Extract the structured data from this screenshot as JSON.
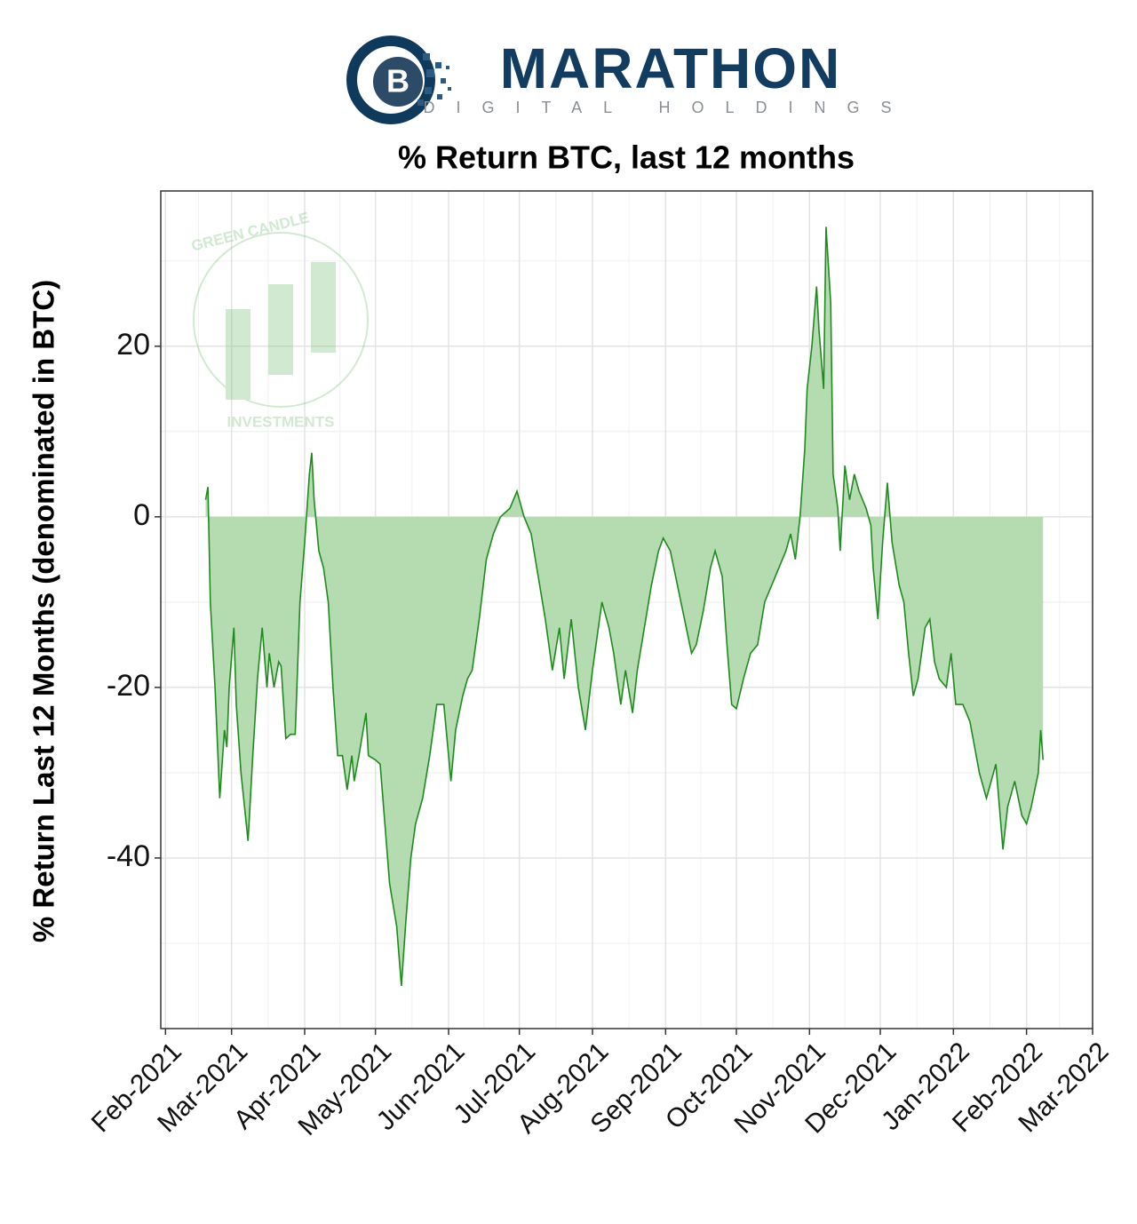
{
  "logo": {
    "name": "MARATHON",
    "tagline": "DIGITAL HOLDINGS"
  },
  "watermark": {
    "top": "GREEN CANDLE",
    "bottom": "INVESTMENTS"
  },
  "chart_data": {
    "type": "area",
    "title": "% Return BTC, last 12 months",
    "y_label": "% Return Last 12 Months (denominated in BTC)",
    "x": [
      "2021-02-18",
      "2021-02-19",
      "2021-02-20",
      "2021-02-22",
      "2021-02-24",
      "2021-02-26",
      "2021-02-27",
      "2021-02-28",
      "2021-03-02",
      "2021-03-03",
      "2021-03-05",
      "2021-03-08",
      "2021-03-10",
      "2021-03-12",
      "2021-03-14",
      "2021-03-16",
      "2021-03-17",
      "2021-03-19",
      "2021-03-21",
      "2021-03-22",
      "2021-03-24",
      "2021-03-26",
      "2021-03-28",
      "2021-03-30",
      "2021-04-01",
      "2021-04-03",
      "2021-04-04",
      "2021-04-05",
      "2021-04-07",
      "2021-04-09",
      "2021-04-11",
      "2021-04-13",
      "2021-04-15",
      "2021-04-17",
      "2021-04-19",
      "2021-04-21",
      "2021-04-22",
      "2021-04-24",
      "2021-04-27",
      "2021-04-28",
      "2021-05-01",
      "2021-05-03",
      "2021-05-05",
      "2021-05-07",
      "2021-05-10",
      "2021-05-12",
      "2021-05-14",
      "2021-05-16",
      "2021-05-18",
      "2021-05-21",
      "2021-05-24",
      "2021-05-27",
      "2021-05-30",
      "2021-06-02",
      "2021-06-04",
      "2021-06-07",
      "2021-06-09",
      "2021-06-11",
      "2021-06-14",
      "2021-06-17",
      "2021-06-20",
      "2021-06-23",
      "2021-06-27",
      "2021-06-30",
      "2021-07-03",
      "2021-07-06",
      "2021-07-09",
      "2021-07-12",
      "2021-07-15",
      "2021-07-18",
      "2021-07-20",
      "2021-07-23",
      "2021-07-26",
      "2021-07-29",
      "2021-08-01",
      "2021-08-03",
      "2021-08-05",
      "2021-08-08",
      "2021-08-10",
      "2021-08-13",
      "2021-08-15",
      "2021-08-18",
      "2021-08-20",
      "2021-08-23",
      "2021-08-26",
      "2021-08-29",
      "2021-08-31",
      "2021-09-03",
      "2021-09-06",
      "2021-09-09",
      "2021-09-12",
      "2021-09-14",
      "2021-09-17",
      "2021-09-20",
      "2021-09-22",
      "2021-09-25",
      "2021-09-27",
      "2021-09-29",
      "2021-10-01",
      "2021-10-04",
      "2021-10-07",
      "2021-10-10",
      "2021-10-13",
      "2021-10-16",
      "2021-10-19",
      "2021-10-22",
      "2021-10-24",
      "2021-10-26",
      "2021-10-28",
      "2021-10-30",
      "2021-10-31",
      "2021-11-02",
      "2021-11-04",
      "2021-11-05",
      "2021-11-07",
      "2021-11-08",
      "2021-11-10",
      "2021-11-11",
      "2021-11-13",
      "2021-11-14",
      "2021-11-16",
      "2021-11-18",
      "2021-11-20",
      "2021-11-22",
      "2021-11-25",
      "2021-11-27",
      "2021-11-28",
      "2021-11-30",
      "2021-12-02",
      "2021-12-04",
      "2021-12-06",
      "2021-12-09",
      "2021-12-11",
      "2021-12-13",
      "2021-12-15",
      "2021-12-17",
      "2021-12-20",
      "2021-12-22",
      "2021-12-24",
      "2021-12-26",
      "2021-12-29",
      "2021-12-31",
      "2022-01-02",
      "2022-01-05",
      "2022-01-08",
      "2022-01-10",
      "2022-01-12",
      "2022-01-15",
      "2022-01-17",
      "2022-01-19",
      "2022-01-22",
      "2022-01-24",
      "2022-01-27",
      "2022-01-30",
      "2022-02-01",
      "2022-02-03",
      "2022-02-06",
      "2022-02-07",
      "2022-02-08"
    ],
    "values": [
      2,
      3.5,
      -10,
      -20,
      -33,
      -25,
      -27,
      -20,
      -13,
      -22,
      -30,
      -38,
      -28,
      -19,
      -13,
      -20,
      -16,
      -20,
      -17,
      -17.5,
      -26,
      -25.5,
      -25.5,
      -10,
      -3,
      5,
      7.5,
      2,
      -4,
      -6,
      -10,
      -20,
      -28,
      -28,
      -32,
      -28,
      -31,
      -28,
      -23,
      -28,
      -28.5,
      -29,
      -36,
      -43,
      -48,
      -55,
      -47,
      -40,
      -36,
      -33,
      -28,
      -22,
      -22,
      -31,
      -25,
      -21,
      -19,
      -18,
      -12,
      -5,
      -2,
      0,
      1,
      3,
      0,
      -2,
      -7,
      -12,
      -18,
      -13,
      -19,
      -12,
      -20,
      -25,
      -18,
      -14,
      -10,
      -13,
      -16,
      -22,
      -18,
      -23,
      -18,
      -13,
      -8,
      -4,
      -2.5,
      -4,
      -8,
      -12,
      -16,
      -15,
      -11,
      -6,
      -4,
      -7,
      -15,
      -22,
      -22.5,
      -19,
      -16,
      -15,
      -10,
      -8,
      -6,
      -4,
      -2,
      -5,
      0,
      8,
      15,
      20,
      27,
      22,
      15,
      34,
      25,
      5,
      1,
      -4,
      6,
      2,
      5,
      3,
      1,
      -1,
      -6,
      -12,
      -3,
      4,
      -3,
      -8,
      -10,
      -16,
      -21,
      -19,
      -13,
      -12,
      -17,
      -19,
      -20,
      -16,
      -22,
      -22,
      -24,
      -27,
      -30,
      -33,
      -31,
      -29,
      -39,
      -34,
      -31,
      -35,
      -36,
      -34,
      -30,
      -25,
      -28.5
    ],
    "color": "#1f8b1f",
    "fill": "#b5dbb1",
    "xlim": [
      "2021-01-30",
      "2022-03-01"
    ],
    "xticks": [
      {
        "value": "2021-02-01",
        "label": "Feb-2021"
      },
      {
        "value": "2021-03-01",
        "label": "Mar-2021"
      },
      {
        "value": "2021-04-01",
        "label": "Apr-2021"
      },
      {
        "value": "2021-05-01",
        "label": "May-2021"
      },
      {
        "value": "2021-06-01",
        "label": "Jun-2021"
      },
      {
        "value": "2021-07-01",
        "label": "Jul-2021"
      },
      {
        "value": "2021-08-01",
        "label": "Aug-2021"
      },
      {
        "value": "2021-09-01",
        "label": "Sep-2021"
      },
      {
        "value": "2021-10-01",
        "label": "Oct-2021"
      },
      {
        "value": "2021-11-01",
        "label": "Nov-2021"
      },
      {
        "value": "2021-12-01",
        "label": "Dec-2021"
      },
      {
        "value": "2022-01-01",
        "label": "Jan-2022"
      },
      {
        "value": "2022-02-01",
        "label": "Feb-2022"
      },
      {
        "value": "2022-03-01",
        "label": "Mar-2022"
      }
    ],
    "ylim": [
      -60,
      38.2
    ],
    "yticks": [
      -40,
      -20,
      0,
      20
    ],
    "grid": true
  }
}
